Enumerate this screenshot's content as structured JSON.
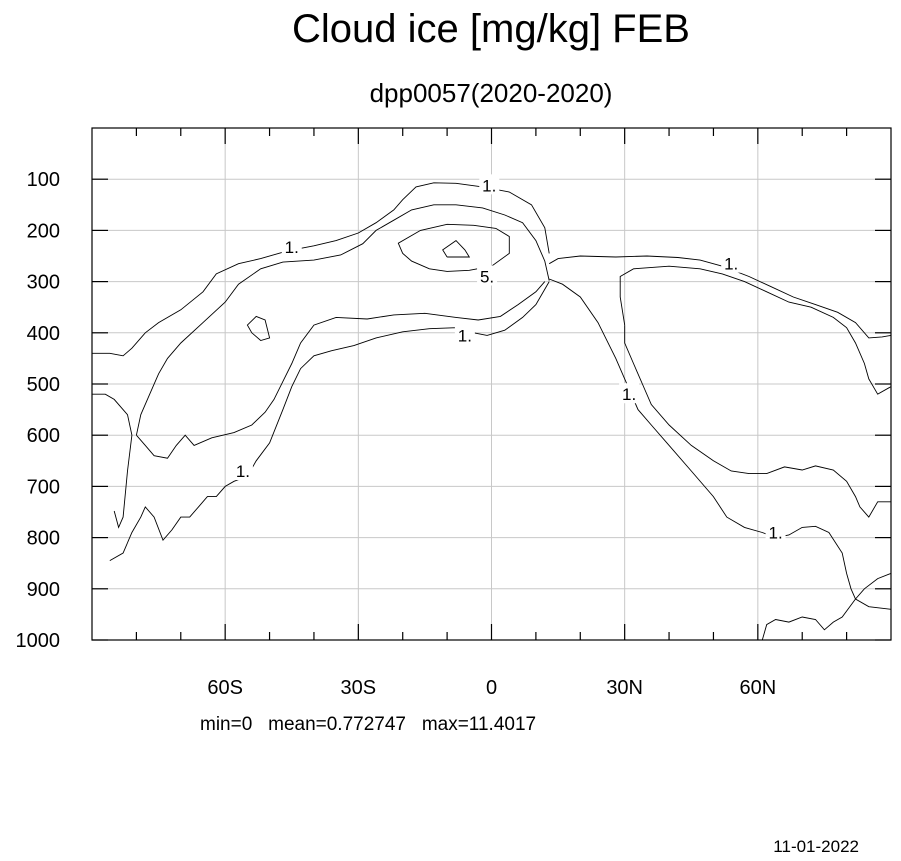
{
  "chart_data": {
    "type": "contour",
    "title": "Cloud ice [mg/kg] FEB",
    "subtitle": "dpp0057(2020-2020)",
    "xlabel": "",
    "ylabel": "",
    "xlim": [
      -90,
      90
    ],
    "ylim": [
      1000,
      0
    ],
    "x_ticks": [
      {
        "value": -60,
        "label": "60S"
      },
      {
        "value": -30,
        "label": "30S"
      },
      {
        "value": 0,
        "label": "0"
      },
      {
        "value": 30,
        "label": "30N"
      },
      {
        "value": 60,
        "label": "60N"
      }
    ],
    "x_minor_ticks": [
      -80,
      -70,
      -50,
      -40,
      -20,
      -10,
      10,
      20,
      40,
      50,
      70,
      80
    ],
    "y_ticks": [
      100,
      200,
      300,
      400,
      500,
      600,
      700,
      800,
      900,
      1000
    ],
    "grid": true,
    "stats": {
      "min": "0",
      "mean": "0.772747",
      "max": "11.4017"
    },
    "stats_text": "min=0   mean=0.772747   max=11.4017",
    "date": "11-01-2022",
    "contours": [
      {
        "level": "1.",
        "points": [
          [
            -90,
            440
          ],
          [
            -86,
            440
          ],
          [
            -83,
            445
          ],
          [
            -81,
            430
          ],
          [
            -78,
            400
          ],
          [
            -75,
            380
          ],
          [
            -70,
            355
          ],
          [
            -65,
            320
          ],
          [
            -62,
            285
          ],
          [
            -57,
            265
          ],
          [
            -52,
            255
          ],
          [
            -46,
            240
          ],
          [
            -40,
            230
          ],
          [
            -35,
            220
          ],
          [
            -30,
            205
          ],
          [
            -26,
            185
          ],
          [
            -22,
            160
          ],
          [
            -20,
            140
          ],
          [
            -17,
            115
          ],
          [
            -13,
            107
          ],
          [
            -8,
            108
          ],
          [
            -2,
            115
          ],
          [
            4,
            125
          ],
          [
            9,
            150
          ],
          [
            12,
            195
          ],
          [
            13,
            245
          ]
        ]
      },
      {
        "level": "1.",
        "points": [
          [
            -80,
            600
          ],
          [
            -79,
            560
          ],
          [
            -77,
            520
          ],
          [
            -75,
            480
          ],
          [
            -73,
            450
          ],
          [
            -70,
            420
          ],
          [
            -65,
            380
          ],
          [
            -60,
            340
          ],
          [
            -57,
            305
          ],
          [
            -52,
            275
          ],
          [
            -47,
            262
          ],
          [
            -40,
            258
          ],
          [
            -34,
            248
          ],
          [
            -29,
            226
          ],
          [
            -26,
            200
          ],
          [
            -22,
            180
          ],
          [
            -18,
            160
          ],
          [
            -13,
            150
          ],
          [
            -8,
            150
          ],
          [
            -2,
            156
          ],
          [
            3,
            170
          ],
          [
            7,
            185
          ],
          [
            10,
            220
          ],
          [
            12,
            260
          ],
          [
            13,
            298
          ]
        ]
      },
      {
        "level": "1.",
        "points": [
          [
            -80,
            600
          ],
          [
            -78,
            620
          ],
          [
            -76,
            640
          ],
          [
            -73,
            645
          ],
          [
            -71,
            620
          ],
          [
            -69,
            600
          ],
          [
            -67,
            620
          ],
          [
            -63,
            605
          ],
          [
            -58,
            595
          ],
          [
            -54,
            580
          ],
          [
            -51,
            555
          ],
          [
            -49,
            530
          ],
          [
            -47,
            495
          ],
          [
            -45,
            460
          ],
          [
            -43,
            420
          ],
          [
            -40,
            385
          ],
          [
            -35,
            370
          ],
          [
            -28,
            373
          ],
          [
            -22,
            365
          ],
          [
            -15,
            362
          ],
          [
            -8,
            370
          ],
          [
            -3,
            375
          ],
          [
            2,
            368
          ],
          [
            6,
            345
          ],
          [
            10,
            320
          ],
          [
            12,
            300
          ]
        ]
      },
      {
        "level": "1.",
        "points": [
          [
            -85,
            748
          ],
          [
            -84,
            780
          ],
          [
            -83,
            760
          ],
          [
            -82,
            670
          ],
          [
            -81,
            600
          ],
          [
            -82,
            560
          ],
          [
            -85,
            530
          ],
          [
            -87,
            520
          ],
          [
            -90,
            520
          ]
        ]
      },
      {
        "level": "1.",
        "points": [
          [
            -86,
            845
          ],
          [
            -83,
            830
          ],
          [
            -81,
            790
          ],
          [
            -79,
            760
          ],
          [
            -78,
            740
          ],
          [
            -76,
            760
          ],
          [
            -74,
            805
          ],
          [
            -72,
            785
          ],
          [
            -70,
            760
          ],
          [
            -68,
            760
          ],
          [
            -66,
            740
          ],
          [
            -64,
            720
          ],
          [
            -62,
            720
          ],
          [
            -60,
            700
          ],
          [
            -58,
            690
          ],
          [
            -55,
            680
          ],
          [
            -53,
            650
          ],
          [
            -50,
            615
          ],
          [
            -47,
            550
          ],
          [
            -45,
            505
          ],
          [
            -43,
            470
          ],
          [
            -40,
            445
          ],
          [
            -36,
            435
          ],
          [
            -31,
            425
          ],
          [
            -26,
            410
          ],
          [
            -20,
            398
          ],
          [
            -14,
            392
          ],
          [
            -8,
            390
          ],
          [
            -4,
            400
          ],
          [
            -1,
            405
          ],
          [
            3,
            395
          ],
          [
            7,
            370
          ],
          [
            10,
            345
          ],
          [
            13,
            300
          ]
        ]
      },
      {
        "level": "1.",
        "points": [
          [
            13,
            295
          ],
          [
            16,
            305
          ],
          [
            20,
            330
          ],
          [
            24,
            380
          ],
          [
            28,
            450
          ],
          [
            31,
            510
          ],
          [
            33,
            550
          ],
          [
            36,
            580
          ],
          [
            40,
            620
          ],
          [
            45,
            670
          ],
          [
            50,
            720
          ],
          [
            53,
            760
          ],
          [
            57,
            780
          ],
          [
            61,
            790
          ],
          [
            64,
            800
          ],
          [
            67,
            795
          ],
          [
            70,
            780
          ],
          [
            73,
            778
          ],
          [
            76,
            790
          ],
          [
            79,
            830
          ],
          [
            80,
            870
          ],
          [
            81,
            900
          ],
          [
            82,
            920
          ],
          [
            85,
            935
          ],
          [
            90,
            940
          ]
        ]
      },
      {
        "level": "1.",
        "points": [
          [
            13,
            265
          ],
          [
            15,
            255
          ],
          [
            20,
            250
          ],
          [
            28,
            252
          ],
          [
            35,
            250
          ],
          [
            42,
            253
          ],
          [
            47,
            258
          ],
          [
            52,
            270
          ],
          [
            58,
            290
          ],
          [
            63,
            310
          ],
          [
            68,
            330
          ],
          [
            73,
            345
          ],
          [
            78,
            360
          ],
          [
            82,
            380
          ],
          [
            85,
            410
          ],
          [
            88,
            408
          ],
          [
            90,
            405
          ]
        ]
      },
      {
        "level": "1.",
        "points": [
          [
            30,
            385
          ],
          [
            29,
            330
          ],
          [
            29,
            290
          ],
          [
            32,
            275
          ],
          [
            40,
            270
          ],
          [
            47,
            275
          ],
          [
            52,
            285
          ],
          [
            57,
            300
          ],
          [
            62,
            320
          ],
          [
            67,
            340
          ],
          [
            72,
            350
          ],
          [
            77,
            370
          ],
          [
            80,
            390
          ],
          [
            82,
            420
          ],
          [
            84,
            460
          ],
          [
            85,
            490
          ],
          [
            87,
            520
          ],
          [
            90,
            505
          ]
        ]
      },
      {
        "level": "1.",
        "points": [
          [
            30,
            385
          ],
          [
            30,
            420
          ],
          [
            32,
            460
          ],
          [
            34,
            500
          ],
          [
            36,
            540
          ],
          [
            40,
            580
          ],
          [
            45,
            620
          ],
          [
            50,
            650
          ],
          [
            54,
            670
          ],
          [
            58,
            675
          ],
          [
            62,
            675
          ],
          [
            66,
            662
          ],
          [
            70,
            668
          ],
          [
            73,
            660
          ],
          [
            77,
            668
          ],
          [
            80,
            690
          ],
          [
            82,
            720
          ],
          [
            83,
            740
          ],
          [
            85,
            760
          ],
          [
            87,
            730
          ],
          [
            90,
            730
          ]
        ]
      },
      {
        "level": "1.",
        "points": [
          [
            61,
            1000
          ],
          [
            62,
            970
          ],
          [
            64,
            960
          ],
          [
            67,
            965
          ],
          [
            70,
            955
          ],
          [
            73,
            960
          ],
          [
            75,
            980
          ],
          [
            77,
            965
          ],
          [
            79,
            955
          ],
          [
            82,
            920
          ],
          [
            84,
            900
          ],
          [
            87,
            880
          ],
          [
            90,
            870
          ]
        ]
      },
      {
        "level": "1.",
        "points": [
          [
            -54,
            400
          ],
          [
            -55,
            385
          ],
          [
            -53,
            368
          ],
          [
            -51,
            375
          ],
          [
            -50,
            410
          ],
          [
            -52,
            415
          ],
          [
            -54,
            400
          ]
        ]
      },
      {
        "level": "5.",
        "points": [
          [
            -20,
            245
          ],
          [
            -21,
            225
          ],
          [
            -16,
            200
          ],
          [
            -10,
            188
          ],
          [
            -4,
            190
          ],
          [
            1,
            196
          ],
          [
            4,
            212
          ],
          [
            4,
            245
          ],
          [
            0,
            270
          ],
          [
            -5,
            278
          ],
          [
            -10,
            280
          ],
          [
            -14,
            275
          ],
          [
            -18,
            260
          ],
          [
            -20,
            245
          ]
        ]
      },
      {
        "level": "5.",
        "points": [
          [
            -10,
            252
          ],
          [
            -11,
            238
          ],
          [
            -8,
            220
          ],
          [
            -6,
            238
          ],
          [
            -5,
            252
          ],
          [
            -10,
            252
          ]
        ]
      }
    ],
    "contour_labels": [
      {
        "text": "1.",
        "x": -45,
        "y": 232
      },
      {
        "text": "1.",
        "x": -0.5,
        "y": 112
      },
      {
        "text": "5.",
        "x": -1,
        "y": 290
      },
      {
        "text": "1.",
        "x": -6,
        "y": 405
      },
      {
        "text": "1.",
        "x": 54,
        "y": 265
      },
      {
        "text": "1.",
        "x": 31,
        "y": 520
      },
      {
        "text": "1.",
        "x": -56,
        "y": 670
      },
      {
        "text": "1.",
        "x": 64,
        "y": 790
      }
    ]
  }
}
